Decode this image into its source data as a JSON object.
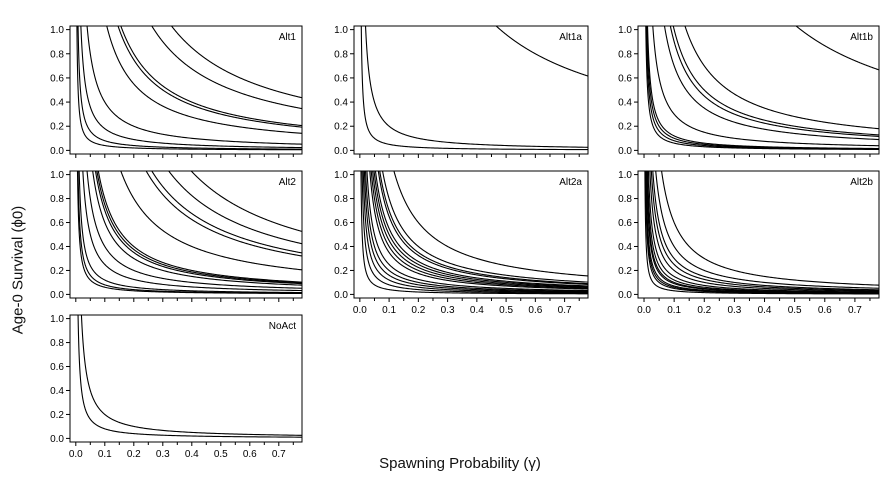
{
  "figure": {
    "ylabel": "Age-0 Survival (ϕ0)",
    "xlabel": "Spawning Probability (γ)"
  },
  "chart_data": {
    "type": "line",
    "xlim": [
      -0.02,
      0.78
    ],
    "ylim": [
      -0.03,
      1.03
    ],
    "xticks": [
      0.0,
      0.1,
      0.2,
      0.3,
      0.4,
      0.5,
      0.6,
      0.7
    ],
    "xtick_labels": [
      "0.0",
      "0.1",
      "0.2",
      "0.3",
      "0.4",
      "0.5",
      "0.6",
      "0.7"
    ],
    "yticks": [
      0.0,
      0.2,
      0.4,
      0.6,
      0.8,
      1.0
    ],
    "ytick_labels": [
      "0.0",
      "0.2",
      "0.4",
      "0.6",
      "0.8",
      "1.0"
    ],
    "grid": false,
    "curve_form": "y = k / x (isoclines)",
    "panels": [
      {
        "label": "Alt1",
        "show_x_ticklabels": false,
        "k": [
          0.004,
          0.008,
          0.018,
          0.04,
          0.11,
          0.15,
          0.16,
          0.27,
          0.34
        ]
      },
      {
        "label": "Alt1a",
        "show_x_ticklabels": false,
        "k": [
          0.005,
          0.02,
          0.48
        ]
      },
      {
        "label": "Alt1b",
        "show_x_ticklabels": false,
        "k": [
          0.006,
          0.008,
          0.01,
          0.012,
          0.03,
          0.07,
          0.09,
          0.1,
          0.14,
          0.52
        ]
      },
      {
        "label": "Alt2",
        "show_x_ticklabels": false,
        "k": [
          0.006,
          0.008,
          0.012,
          0.025,
          0.04,
          0.06,
          0.07,
          0.075,
          0.08,
          0.16,
          0.25,
          0.27,
          0.33,
          0.41
        ]
      },
      {
        "label": "Alt2a",
        "show_x_ticklabels": true,
        "k": [
          0.004,
          0.008,
          0.012,
          0.016,
          0.02,
          0.025,
          0.035,
          0.04,
          0.045,
          0.05,
          0.055,
          0.065,
          0.07,
          0.08,
          0.12
        ]
      },
      {
        "label": "Alt2b",
        "show_x_ticklabels": true,
        "k": [
          0.003,
          0.005,
          0.006,
          0.007,
          0.009,
          0.01,
          0.012,
          0.015,
          0.02,
          0.025,
          0.03,
          0.04,
          0.06
        ]
      },
      {
        "label": "NoAct",
        "show_x_ticklabels": true,
        "k": [
          0.008,
          0.02
        ]
      }
    ]
  }
}
